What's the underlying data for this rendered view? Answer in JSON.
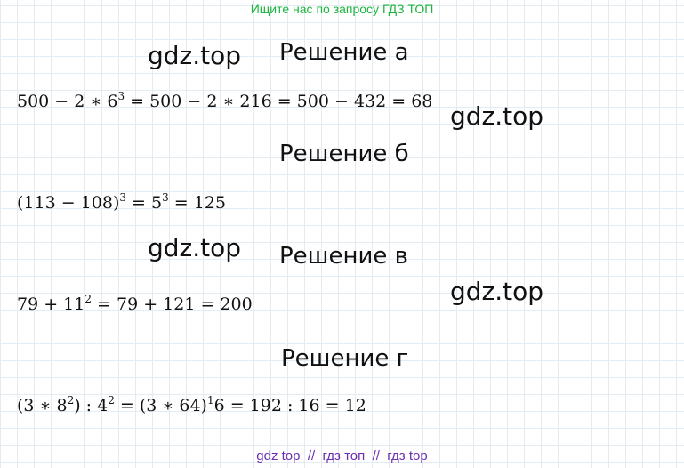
{
  "banner": {
    "text": "Ищите нас по запросу ГДЗ ТОП",
    "color": "#19b53c"
  },
  "watermark": "gdz.top",
  "solutions": [
    {
      "heading": "Решение а",
      "expr": [
        [
          "500 − 2 ∗ 6",
          "3",
          " = 500 − 2 ∗ 216 = 500 − 432 = 68"
        ]
      ]
    },
    {
      "heading": "Решение б",
      "expr": [
        [
          "(113 − 108)",
          "3",
          " = 5"
        ],
        [
          "",
          "3",
          " = 125"
        ]
      ]
    },
    {
      "heading": "Решение в",
      "expr": [
        [
          "79 + 11",
          "2",
          " = 79 + 121 = 200"
        ]
      ]
    },
    {
      "heading": "Решение г",
      "expr": [
        [
          "(3 ∗ 8",
          "2",
          ") : 4"
        ],
        [
          "",
          "2",
          " = (3 ∗ 64)"
        ],
        [
          "",
          "1",
          "6 = 192 : 16 = 12"
        ]
      ]
    }
  ],
  "footer": {
    "text": "gdz top  //  гдз топ  //  гдз top",
    "color": "#6c2fb0"
  }
}
